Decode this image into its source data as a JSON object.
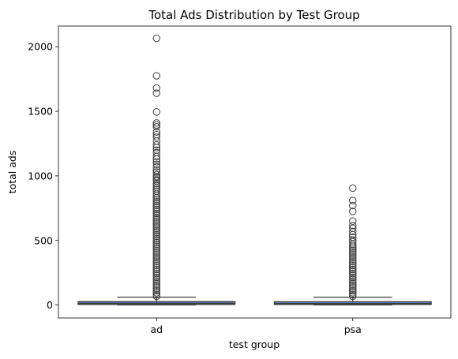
{
  "chart_data": {
    "type": "box",
    "title": "Total Ads Distribution by Test Group",
    "xlabel": "test group",
    "ylabel": "total ads",
    "ylim": [
      -100,
      2160
    ],
    "yticks": [
      0,
      500,
      1000,
      1500,
      2000
    ],
    "categories": [
      "ad",
      "psa"
    ],
    "grid": false,
    "legend": "none",
    "colors": {
      "box_fill": "#5b7bb0",
      "box_edge": "#3d3d3d",
      "outlier": "#3d3d3d"
    },
    "boxes": [
      {
        "category": "ad",
        "min": 1,
        "q1": 4,
        "median": 13,
        "q3": 27,
        "whisker_high": 61,
        "outliers": [
          2065,
          1775,
          1680,
          1640,
          1495,
          1410,
          1395,
          1380,
          1340,
          1320,
          1300,
          1270,
          1240,
          1220,
          1200,
          1180,
          1150,
          1130,
          1110,
          1090,
          1070,
          1045,
          1030,
          1010,
          995,
          985,
          970,
          960,
          940,
          925,
          910,
          895,
          880,
          860,
          845,
          830,
          815,
          800,
          785,
          770,
          755,
          740,
          725,
          710,
          695,
          680,
          665,
          650,
          635,
          620,
          605,
          590,
          575,
          560,
          545,
          530,
          515,
          500,
          485,
          470,
          455,
          440,
          425,
          410,
          395,
          380,
          365,
          350,
          335,
          320,
          305,
          290,
          275,
          260,
          245,
          230,
          215,
          200,
          185,
          170,
          155,
          140,
          125,
          110,
          95,
          80,
          68
        ]
      },
      {
        "category": "psa",
        "min": 1,
        "q1": 4,
        "median": 12,
        "q3": 26,
        "whisker_high": 61,
        "outliers": [
          905,
          810,
          770,
          725,
          650,
          615,
          595,
          570,
          545,
          525,
          505,
          490,
          470,
          455,
          440,
          425,
          410,
          395,
          380,
          365,
          350,
          335,
          320,
          305,
          290,
          275,
          260,
          245,
          230,
          215,
          200,
          185,
          170,
          155,
          140,
          125,
          110,
          95,
          80,
          68
        ]
      }
    ]
  }
}
